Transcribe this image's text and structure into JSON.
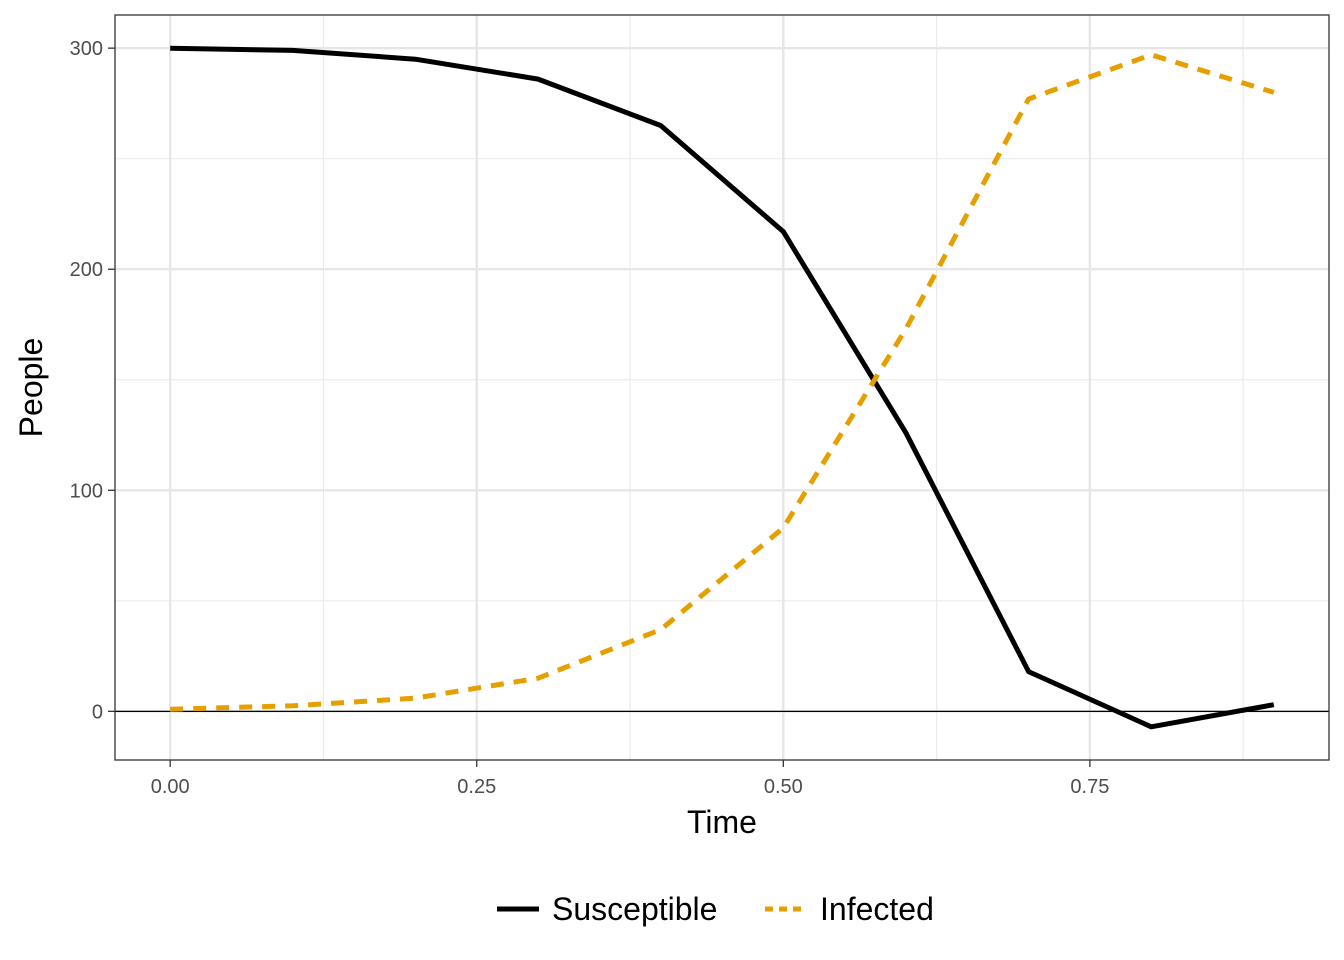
{
  "chart_data": {
    "type": "line",
    "xlabel": "Time",
    "ylabel": "People",
    "xlim": [
      -0.045,
      0.945
    ],
    "ylim": [
      -22,
      315
    ],
    "x_ticks": [
      {
        "value": 0.0,
        "label": "0.00"
      },
      {
        "value": 0.25,
        "label": "0.25"
      },
      {
        "value": 0.5,
        "label": "0.50"
      },
      {
        "value": 0.75,
        "label": "0.75"
      }
    ],
    "x_minor_ticks": [
      0.125,
      0.375,
      0.625,
      0.875
    ],
    "y_ticks": [
      {
        "value": 0,
        "label": "0"
      },
      {
        "value": 100,
        "label": "100"
      },
      {
        "value": 200,
        "label": "200"
      },
      {
        "value": 300,
        "label": "300"
      }
    ],
    "y_minor_ticks": [
      50,
      150,
      250
    ],
    "hline": 0,
    "grid": true,
    "legend_position": "bottom",
    "x": [
      0.0,
      0.1,
      0.2,
      0.3,
      0.4,
      0.5,
      0.6,
      0.7,
      0.8,
      0.9
    ],
    "series": [
      {
        "name": "Susceptible",
        "color": "#000000",
        "dash": "solid",
        "values": [
          300,
          299,
          295,
          286,
          265,
          217,
          126,
          18,
          -7,
          3
        ]
      },
      {
        "name": "Infected",
        "color": "#E69F00",
        "dash": "dashed",
        "values": [
          1,
          2.5,
          6,
          15,
          37,
          83,
          173,
          277,
          297,
          280
        ]
      }
    ]
  }
}
